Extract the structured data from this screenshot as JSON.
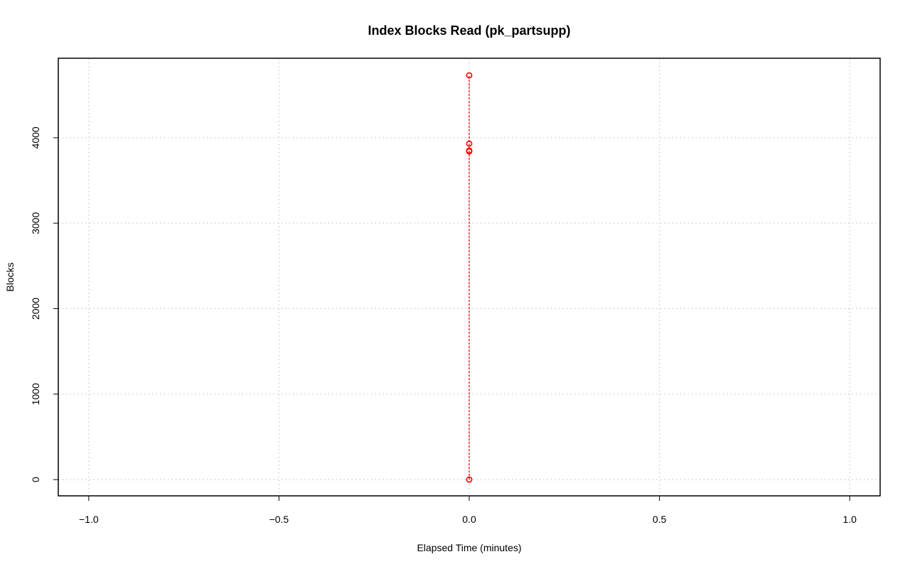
{
  "chart_data": {
    "type": "scatter",
    "title": "Index Blocks Read (pk_partsupp)",
    "xlabel": "Elapsed Time (minutes)",
    "ylabel": "Blocks",
    "xlim": [
      -1.08,
      1.08
    ],
    "ylim": [
      -190,
      4930
    ],
    "x_ticks": [
      -1.0,
      -0.5,
      0.0,
      0.5,
      1.0
    ],
    "x_tick_labels": [
      "−1.0",
      "−0.5",
      "0.0",
      "0.5",
      "1.0"
    ],
    "y_ticks": [
      0,
      1000,
      2000,
      3000,
      4000
    ],
    "y_tick_labels": [
      "0",
      "1000",
      "2000",
      "3000",
      "4000"
    ],
    "grid": true,
    "series": [
      {
        "color": "#ff0000",
        "x": [
          0,
          0,
          0,
          0,
          0
        ],
        "y": [
          0,
          3840,
          3850,
          3930,
          4730
        ],
        "style": "points-and-dashed-line"
      }
    ]
  }
}
